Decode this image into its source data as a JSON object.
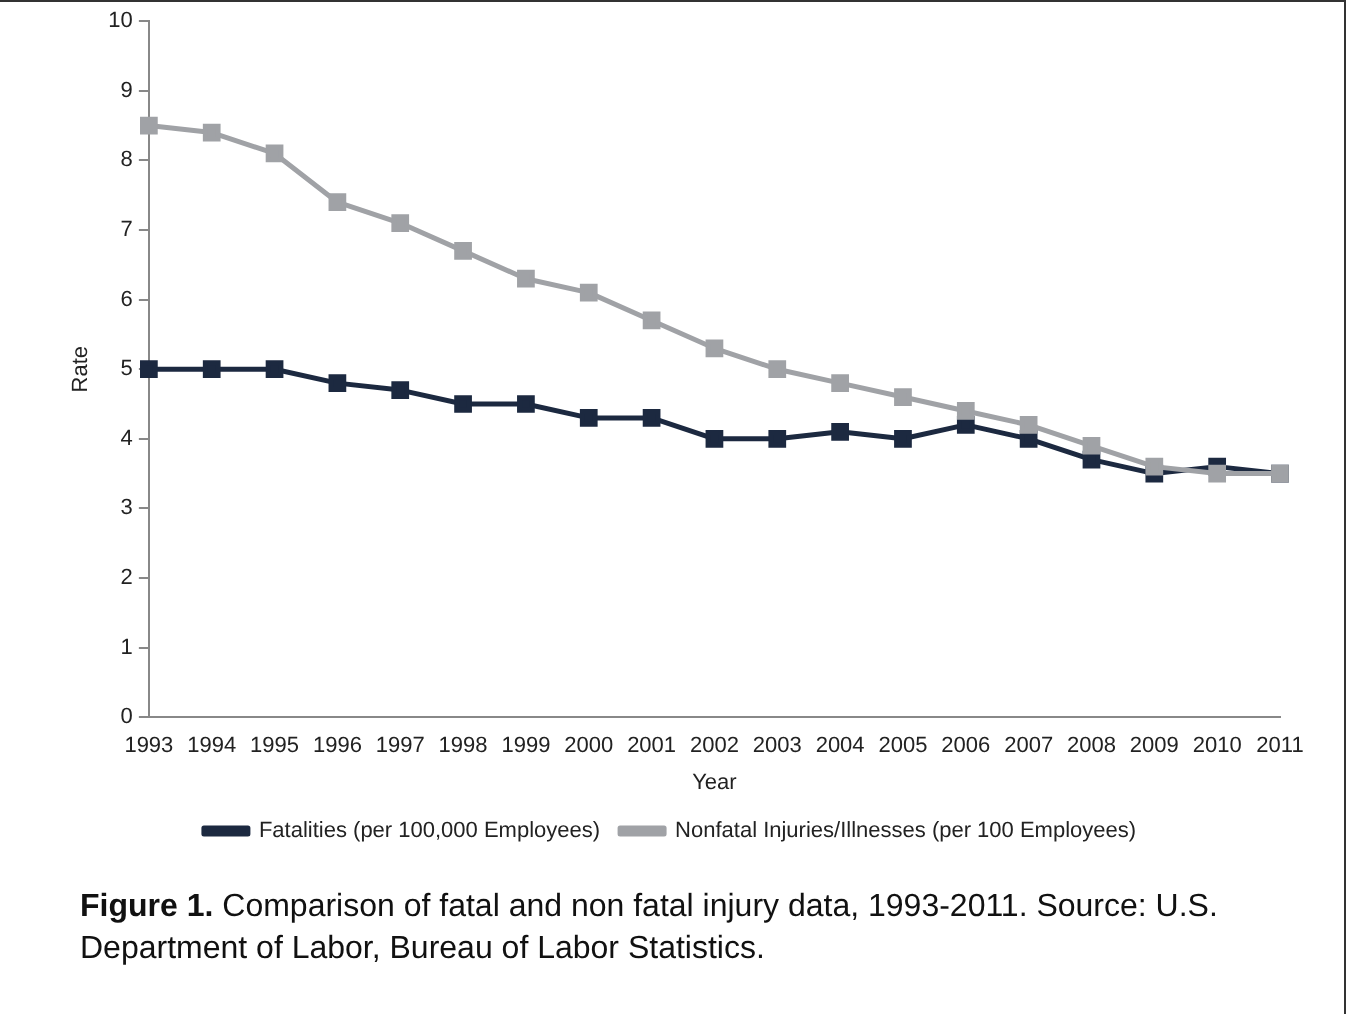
{
  "chart_data": {
    "type": "line",
    "xlabel": "Year",
    "ylabel": "Rate",
    "categories": [
      "1993",
      "1994",
      "1995",
      "1996",
      "1997",
      "1998",
      "1999",
      "2000",
      "2001",
      "2002",
      "2003",
      "2004",
      "2005",
      "2006",
      "2007",
      "2008",
      "2009",
      "2010",
      "2011"
    ],
    "series": [
      {
        "name": "Fatalities (per 100,000 Employees)",
        "color": "#1c2940",
        "values": [
          5.0,
          5.0,
          5.0,
          4.8,
          4.7,
          4.5,
          4.5,
          4.3,
          4.3,
          4.0,
          4.0,
          4.1,
          4.0,
          4.2,
          4.0,
          3.7,
          3.5,
          3.6,
          3.5
        ]
      },
      {
        "name": "Nonfatal Injuries/Illnesses (per 100 Employees)",
        "color": "#a0a2a6",
        "values": [
          8.5,
          8.4,
          8.1,
          7.4,
          7.1,
          6.7,
          6.3,
          6.1,
          5.7,
          5.3,
          5.0,
          4.8,
          4.6,
          4.4,
          4.2,
          3.9,
          3.6,
          3.5,
          3.5
        ]
      }
    ],
    "ylim": [
      0,
      10
    ],
    "yticks": [
      0,
      1,
      2,
      3,
      4,
      5,
      6,
      7,
      8,
      9,
      10
    ],
    "grid": false,
    "legend": "bottom",
    "marker": "square",
    "line_style": "solid",
    "annotations": [
      "Figure 1.",
      "Comparison of fatal and non fatal injury data, 1993-2011. Source: U.S. Department of Labor, Bureau of Labor Statistics."
    ]
  }
}
